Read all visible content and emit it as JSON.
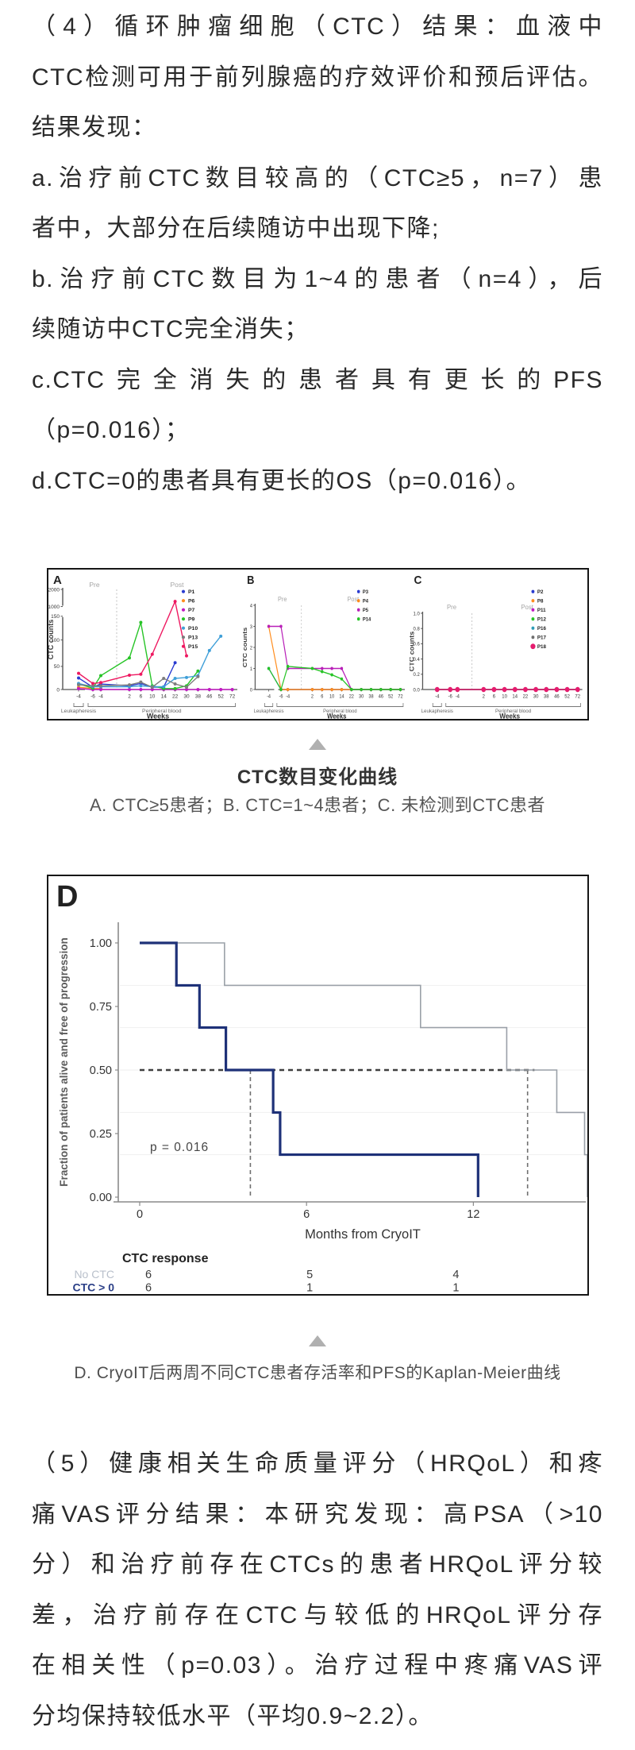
{
  "text": {
    "para4": [
      "（4）循环肿瘤细胞（CTC）结果：血液中",
      "CTC检测可用于前列腺癌的疗效评价和预后评估。",
      "结果发现：",
      "a.治疗前CTC数目较高的（CTC≥5，n=7）患",
      "者中，大部分在后续随访中出现下降;",
      "b.治疗前CTC数目为1~4的患者（n=4），后",
      "续随访中CTC完全消失；",
      "c.CTC完全消失的患者具有更长的PFS",
      "（p=0.016）；",
      "d.CTC=0的患者具有更长的OS（p=0.016）。"
    ],
    "para5": [
      "（5）健康相关生命质量评分（HRQoL）和疼",
      "痛VAS评分结果：本研究发现：高PSA（>10",
      "分）和治疗前存在CTCs的患者HRQoL评分较",
      "差，治疗前存在CTC与较低的HRQoL评分存",
      "在相关性（p=0.03）。治疗过程中疼痛VAS评",
      "分均保持较低水平（平均0.9~2.2）。"
    ]
  },
  "figure1": {
    "caption_title": "CTC数目变化曲线",
    "caption_sub": "A. CTC≥5患者；B. CTC=1~4患者；C. 未检测到CTC患者"
  },
  "figure2": {
    "caption": "D. CryoIT后两周不同CTC患者存活率和PFS的Kaplan-Meier曲线"
  },
  "chart_data": [
    {
      "type": "line",
      "panel_label": "A",
      "ylabel": "CTC counts",
      "xlabel": "Weeks",
      "phase_labels": [
        "Pre",
        "Post"
      ],
      "x_ticks": [
        "-4",
        "-6",
        "-4",
        "2",
        "6",
        "10",
        "14",
        "22",
        "30",
        "38",
        "46",
        "52",
        "72"
      ],
      "x_groups": [
        {
          "label": "Leukapheresis",
          "span": [
            0,
            0
          ]
        },
        {
          "label": "Peripheral blood",
          "span": [
            1,
            12
          ]
        }
      ],
      "y_ticks": [
        0,
        50,
        100,
        150,
        1000,
        2000
      ],
      "y_break": true,
      "y_anchors": [
        [
          0,
          0
        ],
        [
          50,
          0.231
        ],
        [
          100,
          0.495
        ],
        [
          150,
          0.732
        ],
        [
          1000,
          0.829
        ],
        [
          2000,
          1
        ]
      ],
      "series": [
        {
          "name": "P1",
          "color": "#2a3bd0",
          "values": [
            25,
            5,
            12,
            8,
            13,
            5,
            5,
            57,
            null,
            null,
            null,
            null,
            null
          ]
        },
        {
          "name": "P6",
          "color": "#ff8d1e",
          "values": [
            5,
            2,
            2,
            null,
            null,
            null,
            null,
            null,
            null,
            null,
            null,
            null,
            null
          ]
        },
        {
          "name": "P7",
          "color": "#c219c2",
          "values": [
            2,
            0,
            0,
            0,
            0,
            0,
            0,
            0,
            0,
            0,
            0,
            0,
            0
          ]
        },
        {
          "name": "P9",
          "color": "#27c427",
          "values": [
            12,
            3,
            30,
            66,
            137,
            8,
            2,
            2,
            8,
            40,
            null,
            null,
            null
          ]
        },
        {
          "name": "P10",
          "color": "#3f9fd8",
          "values": [
            13,
            6,
            6,
            6,
            8,
            6,
            6,
            24,
            26,
            30,
            80,
            108,
            null
          ]
        },
        {
          "name": "P13",
          "color": "#7d7d7d",
          "values": [
            10,
            8,
            8,
            10,
            16,
            5,
            24,
            12,
            5,
            28,
            null,
            null,
            null
          ]
        },
        {
          "name": "P15",
          "color": "#ee1860",
          "values": [
            35,
            13,
            15,
            31,
            33,
            73,
            null,
            1300,
            70,
            null,
            null,
            null,
            null
          ]
        }
      ]
    },
    {
      "type": "line",
      "panel_label": "B",
      "ylabel": "CTC counts",
      "xlabel": "Weeks",
      "phase_labels": [
        "Pre",
        "Post"
      ],
      "x_ticks": [
        "-4",
        "-6",
        "-4",
        "2",
        "6",
        "10",
        "14",
        "22",
        "30",
        "38",
        "46",
        "52",
        "72"
      ],
      "x_groups": [
        {
          "label": "Leukapheresis",
          "span": [
            0,
            0
          ]
        },
        {
          "label": "Peripheral blood",
          "span": [
            1,
            12
          ]
        }
      ],
      "y_ticks": [
        0,
        1,
        2,
        3,
        4
      ],
      "y_break": false,
      "series": [
        {
          "name": "P3",
          "color": "#2a3bd0",
          "values": [
            1,
            0,
            0,
            0,
            0,
            0,
            0,
            0,
            0,
            0,
            0,
            0,
            0
          ]
        },
        {
          "name": "P4",
          "color": "#ff8d1e",
          "values": [
            3,
            0,
            0,
            0,
            0,
            0,
            0,
            0,
            0,
            0,
            0,
            0,
            0
          ]
        },
        {
          "name": "P5",
          "color": "#b81fb8",
          "values": [
            3,
            3,
            1,
            1,
            1,
            1,
            1,
            0,
            0,
            0,
            0,
            0,
            0
          ]
        },
        {
          "name": "P14",
          "color": "#27c427",
          "values": [
            1,
            0,
            1.1,
            1,
            0.85,
            0.7,
            0.5,
            0,
            0,
            0,
            0,
            0,
            0
          ]
        }
      ]
    },
    {
      "type": "line",
      "panel_label": "C",
      "ylabel": "CTC counts",
      "xlabel": "Weeks",
      "phase_labels": [
        "Pre",
        "Post"
      ],
      "x_ticks": [
        "-4",
        "-6",
        "-4",
        "2",
        "6",
        "10",
        "14",
        "22",
        "30",
        "38",
        "46",
        "52",
        "72"
      ],
      "x_groups": [
        {
          "label": "Leukapheresis",
          "span": [
            0,
            0
          ]
        },
        {
          "label": "Peripheral blood",
          "span": [
            1,
            12
          ]
        }
      ],
      "y_ticks": [
        0,
        0.2,
        0.4,
        0.6,
        0.8,
        1.0
      ],
      "y_break": false,
      "y_decimals": 1,
      "series": [
        {
          "name": "P2",
          "color": "#2a3bd0",
          "values": [
            0,
            0,
            0,
            0,
            0,
            0,
            0,
            0,
            0,
            0,
            0,
            0,
            0
          ]
        },
        {
          "name": "P8",
          "color": "#ff8d1e",
          "values": [
            0,
            0,
            0,
            0,
            0,
            0,
            0,
            0,
            0,
            0,
            0,
            0,
            0
          ]
        },
        {
          "name": "P11",
          "color": "#c219c2",
          "values": [
            0,
            0,
            0,
            0,
            0,
            0,
            0,
            0,
            0,
            0,
            0,
            0,
            0
          ]
        },
        {
          "name": "P12",
          "color": "#27c427",
          "values": [
            0,
            0,
            0,
            0,
            0,
            0,
            0,
            0,
            0,
            0,
            0,
            0,
            0
          ]
        },
        {
          "name": "P16",
          "color": "#2f9db8",
          "values": [
            0,
            0,
            0,
            0,
            0,
            0,
            0,
            0,
            0,
            0,
            0,
            0,
            0
          ]
        },
        {
          "name": "P17",
          "color": "#6f6f6f",
          "values": [
            0,
            0,
            0,
            0,
            0,
            0,
            0,
            0,
            0,
            0,
            0,
            0,
            0
          ]
        },
        {
          "name": "P18",
          "color": "#e51c6e",
          "big": true,
          "values": [
            0,
            0,
            0,
            0,
            0,
            0,
            0,
            0,
            0,
            0,
            0,
            0,
            0
          ]
        }
      ]
    },
    {
      "type": "step",
      "panel_label": "D",
      "xlabel": "Months from CryoIT",
      "ylabel": "Fraction of patients alive and free of progression",
      "x_ticks": [
        0,
        6,
        12
      ],
      "y_ticks": [
        "1.00",
        "0.75",
        "0.50",
        "0.25",
        "0.00"
      ],
      "xlim": [
        0,
        16.2
      ],
      "ylim": [
        0,
        1
      ],
      "p_value_label": "p = 0.016",
      "median_guides": {
        "h_level": 0.5,
        "h_span": [
          0,
          14.2
        ],
        "v_lines": [
          3.98,
          13.95
        ]
      },
      "series": [
        {
          "name": "No CTC",
          "color": "#9aa0a8",
          "line_width": 1.6,
          "steps": [
            [
              0,
              1
            ],
            [
              3.05,
              1
            ],
            [
              3.05,
              0.833
            ],
            [
              10.1,
              0.833
            ],
            [
              10.1,
              0.667
            ],
            [
              13.2,
              0.667
            ],
            [
              13.2,
              0.5
            ],
            [
              15.0,
              0.5
            ],
            [
              15.0,
              0.333
            ],
            [
              16.0,
              0.333
            ],
            [
              16.0,
              0.167
            ],
            [
              16.1,
              0.167
            ],
            [
              16.1,
              0
            ]
          ]
        },
        {
          "name": "CTC > 0",
          "color": "#1e3178",
          "line_width": 3.2,
          "steps": [
            [
              0,
              1
            ],
            [
              1.32,
              1
            ],
            [
              1.32,
              0.833
            ],
            [
              2.15,
              0.833
            ],
            [
              2.15,
              0.667
            ],
            [
              3.1,
              0.667
            ],
            [
              3.1,
              0.5
            ],
            [
              4.8,
              0.5
            ],
            [
              4.8,
              0.333
            ],
            [
              5.05,
              0.333
            ],
            [
              5.05,
              0.167
            ],
            [
              12.17,
              0.167
            ],
            [
              12.17,
              0
            ]
          ]
        }
      ],
      "risk_table": {
        "title": "CTC response",
        "rows": [
          {
            "label": "No CTC",
            "label_color": "#b9c0cb",
            "values": [
              "6",
              "5",
              "4"
            ]
          },
          {
            "label": "CTC > 0",
            "label_color": "#2b3f87",
            "values": [
              "6",
              "1",
              "1"
            ]
          }
        ]
      }
    }
  ]
}
